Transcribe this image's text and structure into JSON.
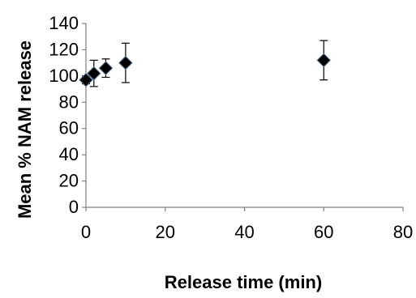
{
  "chart_data": {
    "type": "scatter",
    "title": "",
    "xlabel": "Release time (min)",
    "ylabel": "Mean % NAM release",
    "xlim": [
      0,
      80
    ],
    "ylim": [
      0,
      140
    ],
    "x_ticks": [
      0,
      20,
      40,
      60,
      80
    ],
    "y_ticks": [
      0,
      20,
      40,
      60,
      80,
      100,
      120,
      140
    ],
    "x_tick_labels": [
      "0",
      "20",
      "40",
      "60",
      "80"
    ],
    "y_tick_labels": [
      "0",
      "20",
      "40",
      "60",
      "80",
      "100",
      "120",
      "140"
    ],
    "grid": false,
    "legend": "none",
    "marker": "diamond",
    "marker_color": "#000000",
    "series": [
      {
        "points": [
          {
            "x": 0,
            "y": 97,
            "err": 3
          },
          {
            "x": 2,
            "y": 102,
            "err": 10
          },
          {
            "x": 5,
            "y": 106,
            "err": 7
          },
          {
            "x": 10,
            "y": 110,
            "err": 15
          },
          {
            "x": 60,
            "y": 112,
            "err": 15
          }
        ]
      }
    ]
  }
}
